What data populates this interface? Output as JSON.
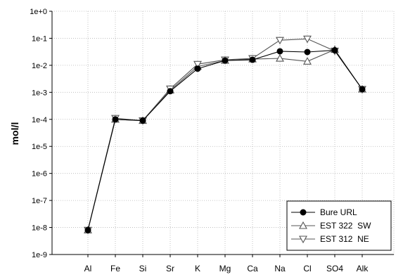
{
  "chart_data": {
    "type": "line",
    "title": "",
    "xlabel": "",
    "ylabel": "mol/l",
    "y_scale": "log",
    "ylim": [
      1e-09,
      1
    ],
    "y_ticks": [
      {
        "value": 1e-09,
        "label": "1e-9"
      },
      {
        "value": 1e-08,
        "label": "1e-8"
      },
      {
        "value": 1e-07,
        "label": "1e-7"
      },
      {
        "value": 1e-06,
        "label": "1e-6"
      },
      {
        "value": 1e-05,
        "label": "1e-5"
      },
      {
        "value": 0.0001,
        "label": "1e-4"
      },
      {
        "value": 0.001,
        "label": "1e-3"
      },
      {
        "value": 0.01,
        "label": "1e-2"
      },
      {
        "value": 0.1,
        "label": "1e-1"
      },
      {
        "value": 1,
        "label": "1e+0"
      }
    ],
    "categories": [
      "Al",
      "Fe",
      "Si",
      "Sr",
      "K",
      "Mg",
      "Ca",
      "Na",
      "Cl",
      "SO4",
      "Alk"
    ],
    "grid": true,
    "legend_position": "bottom-right",
    "series": [
      {
        "name": "Bure URL",
        "marker": "circle-filled",
        "color": "#000000",
        "values": [
          8e-09,
          0.0001,
          9e-05,
          0.0011,
          0.0075,
          0.015,
          0.016,
          0.033,
          0.031,
          0.036,
          0.0013
        ]
      },
      {
        "name": "EST 322  SW",
        "marker": "triangle-up-open",
        "color": "#555555",
        "values": [
          8e-09,
          0.0001,
          9e-05,
          0.0012,
          0.009,
          0.015,
          0.017,
          0.018,
          0.014,
          0.038,
          0.0013
        ]
      },
      {
        "name": "EST 312  NE",
        "marker": "triangle-down-open",
        "color": "#555555",
        "values": [
          8e-09,
          0.00011,
          9e-05,
          0.00135,
          0.011,
          0.016,
          0.018,
          0.085,
          0.095,
          0.034,
          0.0013
        ]
      }
    ]
  }
}
